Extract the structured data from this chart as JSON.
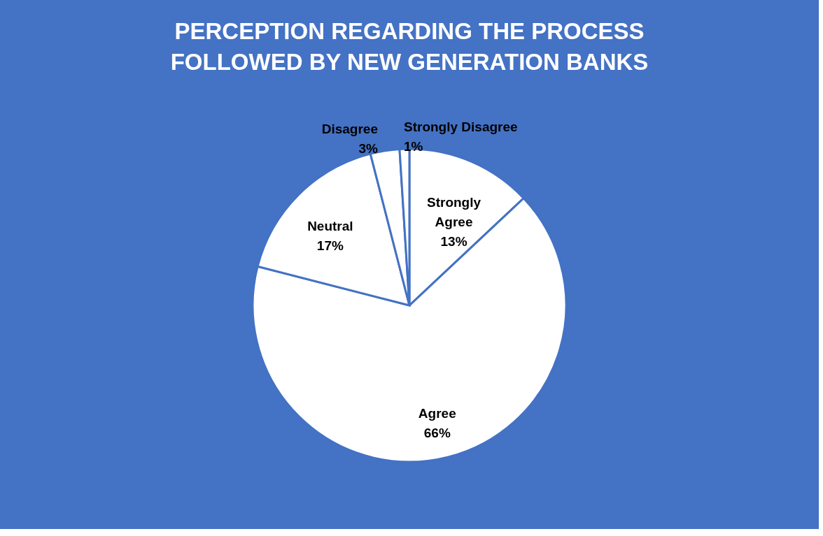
{
  "chart_data": {
    "type": "pie",
    "title": "PERCEPTION REGARDING THE PROCESS FOLLOWED BY NEW GENERATION BANKS",
    "categories": [
      "Strongly Agree",
      "Agree",
      "Neutral",
      "Disagree",
      "Strongly Disagree"
    ],
    "values": [
      13,
      66,
      17,
      3,
      1
    ],
    "colors": [
      "#ffffff",
      "#ffffff",
      "#ffffff",
      "#ffffff",
      "#ffffff"
    ],
    "value_labels": [
      "13%",
      "66%",
      "17%",
      "3%",
      "1%"
    ],
    "legend": false
  }
}
